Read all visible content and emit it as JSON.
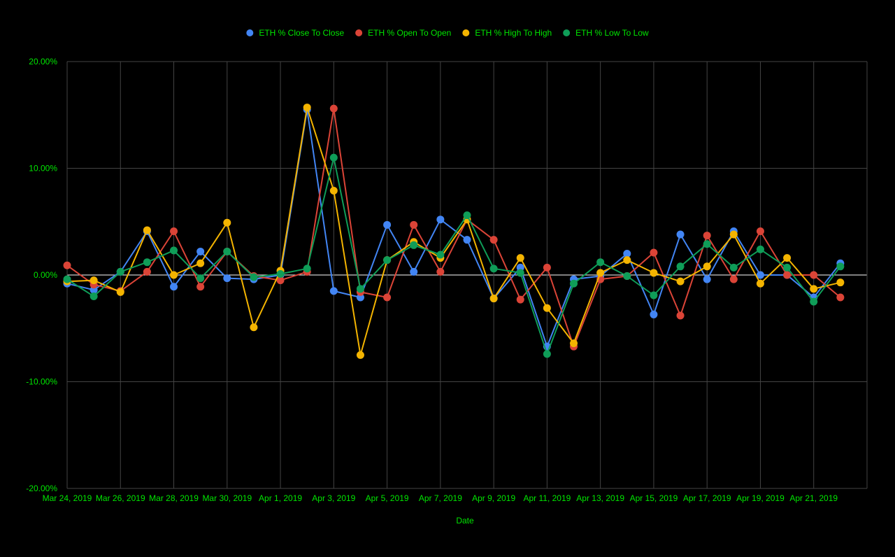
{
  "colors": {
    "background": "#000000",
    "text": "#00e600",
    "grid": "#444444",
    "zero_line": "#ffffff"
  },
  "chart_data": {
    "type": "line",
    "title": "",
    "xlabel": "Date",
    "ylabel": "",
    "ylim": [
      -20,
      20
    ],
    "y_ticks": [
      20,
      10,
      0,
      -10,
      -20
    ],
    "y_tick_labels": [
      "20.00%",
      "10.00%",
      "0.00%",
      "-10.00%",
      "-20.00%"
    ],
    "grid": true,
    "legend_position": "top",
    "x_tick_labels": [
      "Mar 24, 2019",
      "Mar 26, 2019",
      "Mar 28, 2019",
      "Mar 30, 2019",
      "Apr 1, 2019",
      "Apr 3, 2019",
      "Apr 5, 2019",
      "Apr 7, 2019",
      "Apr 9, 2019",
      "Apr 11, 2019",
      "Apr 13, 2019",
      "Apr 15, 2019",
      "Apr 17, 2019",
      "Apr 19, 2019",
      "Apr 21, 2019"
    ],
    "x": [
      "2019-03-24",
      "2019-03-25",
      "2019-03-26",
      "2019-03-27",
      "2019-03-28",
      "2019-03-29",
      "2019-03-30",
      "2019-03-31",
      "2019-04-01",
      "2019-04-02",
      "2019-04-03",
      "2019-04-04",
      "2019-04-05",
      "2019-04-06",
      "2019-04-07",
      "2019-04-08",
      "2019-04-09",
      "2019-04-10",
      "2019-04-11",
      "2019-04-12",
      "2019-04-13",
      "2019-04-14",
      "2019-04-15",
      "2019-04-16",
      "2019-04-17",
      "2019-04-18",
      "2019-04-19",
      "2019-04-20",
      "2019-04-21",
      "2019-04-22"
    ],
    "series": [
      {
        "name": "ETH % Close To Close",
        "color": "#4285f4",
        "values": [
          -0.8,
          -1.4,
          0.3,
          4.1,
          -1.1,
          2.2,
          -0.3,
          -0.4,
          0.0,
          15.5,
          -1.5,
          -2.1,
          4.7,
          0.3,
          5.2,
          3.3,
          -2.2,
          0.7,
          -6.7,
          -0.4,
          -0.1,
          2.0,
          -3.7,
          3.8,
          -0.4,
          4.1,
          0.0,
          0.0,
          -2.1,
          1.1
        ]
      },
      {
        "name": "ETH % Open To Open",
        "color": "#db4437",
        "values": [
          0.9,
          -0.9,
          -1.5,
          0.3,
          4.1,
          -1.1,
          2.2,
          -0.1,
          -0.5,
          0.3,
          15.6,
          -1.6,
          -2.1,
          4.7,
          0.3,
          5.2,
          3.3,
          -2.3,
          0.7,
          -6.7,
          -0.4,
          -0.1,
          2.1,
          -3.8,
          3.7,
          -0.4,
          4.1,
          0.0,
          0.0,
          -2.1
        ]
      },
      {
        "name": "ETH % High To High",
        "color": "#f4b400",
        "values": [
          -0.6,
          -0.5,
          -1.6,
          4.2,
          0.0,
          1.1,
          4.9,
          -4.9,
          0.4,
          15.7,
          7.9,
          -7.5,
          1.4,
          3.1,
          1.6,
          5.2,
          -2.2,
          1.6,
          -3.1,
          -6.4,
          0.2,
          1.4,
          0.2,
          -0.6,
          0.8,
          3.8,
          -0.8,
          1.6,
          -1.3,
          -0.7
        ]
      },
      {
        "name": "ETH % Low To Low",
        "color": "#0f9d58",
        "values": [
          -0.4,
          -2.0,
          0.3,
          1.2,
          2.3,
          -0.3,
          2.2,
          -0.2,
          0.1,
          0.6,
          11.0,
          -1.3,
          1.4,
          2.8,
          1.9,
          5.6,
          0.6,
          0.2,
          -7.4,
          -0.8,
          1.2,
          -0.1,
          -1.9,
          0.8,
          2.9,
          0.7,
          2.4,
          0.7,
          -2.5,
          0.8
        ]
      }
    ]
  }
}
